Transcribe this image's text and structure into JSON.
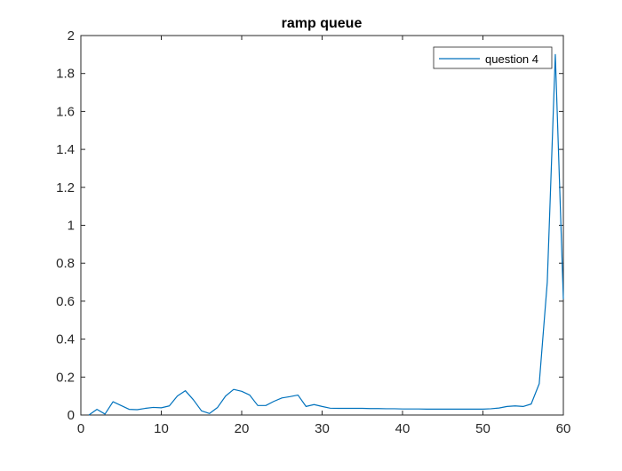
{
  "chart_data": {
    "type": "line",
    "title": "ramp queue",
    "xlabel": "",
    "ylabel": "",
    "xlim": [
      0,
      60
    ],
    "ylim": [
      0,
      2
    ],
    "xticks": [
      0,
      10,
      20,
      30,
      40,
      50,
      60
    ],
    "yticks": [
      0,
      0.2,
      0.4,
      0.6,
      0.8,
      1,
      1.2,
      1.4,
      1.6,
      1.8,
      2
    ],
    "x_tick_labels": [
      "0",
      "10",
      "20",
      "30",
      "40",
      "50",
      "60"
    ],
    "y_tick_labels": [
      "0",
      "0.2",
      "0.4",
      "0.6",
      "0.8",
      "1",
      "1.2",
      "1.4",
      "1.6",
      "1.8",
      "2"
    ],
    "grid": false,
    "legend_position": "top-right",
    "series": [
      {
        "name": "question 4",
        "color": "#0072BD",
        "x": [
          1,
          2,
          3,
          4,
          5,
          6,
          7,
          8,
          9,
          10,
          11,
          12,
          13,
          14,
          15,
          16,
          17,
          18,
          19,
          20,
          21,
          22,
          23,
          24,
          25,
          26,
          27,
          28,
          29,
          30,
          31,
          32,
          33,
          34,
          35,
          36,
          37,
          38,
          39,
          40,
          41,
          42,
          43,
          44,
          45,
          46,
          47,
          48,
          49,
          50,
          51,
          52,
          53,
          54,
          55,
          56,
          57,
          58,
          59,
          60
        ],
        "values": [
          0.0,
          0.03,
          0.005,
          0.07,
          0.05,
          0.03,
          0.028,
          0.035,
          0.04,
          0.038,
          0.048,
          0.1,
          0.128,
          0.08,
          0.022,
          0.008,
          0.04,
          0.1,
          0.135,
          0.125,
          0.105,
          0.05,
          0.05,
          0.072,
          0.09,
          0.097,
          0.105,
          0.045,
          0.055,
          0.045,
          0.036,
          0.035,
          0.035,
          0.035,
          0.035,
          0.034,
          0.034,
          0.033,
          0.033,
          0.032,
          0.032,
          0.032,
          0.031,
          0.031,
          0.031,
          0.031,
          0.031,
          0.031,
          0.031,
          0.031,
          0.033,
          0.037,
          0.045,
          0.048,
          0.045,
          0.058,
          0.165,
          0.7,
          1.9,
          0.61
        ]
      }
    ]
  }
}
